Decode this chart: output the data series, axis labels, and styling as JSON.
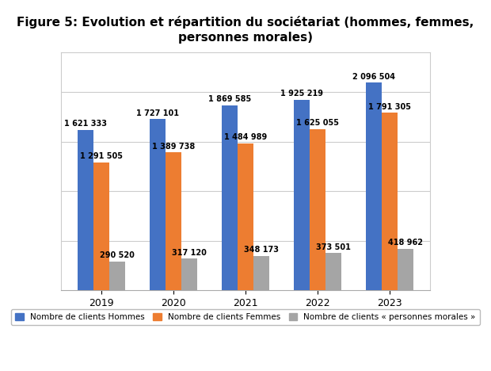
{
  "title": "Figure 5: Evolution et répartition du sociétariat (hommes, femmes,\npersonnes morales)",
  "years": [
    "2019",
    "2020",
    "2021",
    "2022",
    "2023"
  ],
  "hommes": [
    1621333,
    1727101,
    1869585,
    1925219,
    2096504
  ],
  "femmes": [
    1291505,
    1389738,
    1484989,
    1625055,
    1791305
  ],
  "morales": [
    290520,
    317120,
    348173,
    373501,
    418962
  ],
  "color_hommes": "#4472C4",
  "color_femmes": "#ED7D31",
  "color_morales": "#A5A5A5",
  "legend_hommes": "Nombre de clients Hommes",
  "legend_femmes": "Nombre de clients Femmes",
  "legend_morales": "Nombre de clients « personnes morales »",
  "bar_width": 0.22,
  "ylim": [
    0,
    2400000
  ],
  "background_color": "#ffffff",
  "plot_bg_color": "#ffffff",
  "title_fontsize": 11,
  "label_fontsize": 7,
  "tick_fontsize": 9,
  "legend_fontsize": 7.5
}
